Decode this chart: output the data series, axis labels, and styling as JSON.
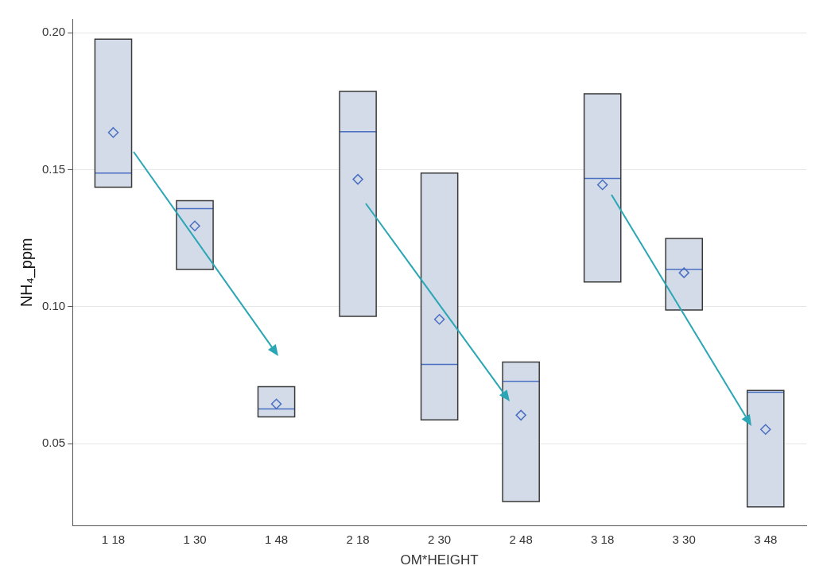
{
  "chart_data": {
    "type": "box",
    "xlabel": "OM*HEIGHT",
    "ylabel": "NH₄_ppm",
    "categories": [
      "1 18",
      "1 30",
      "1 48",
      "2 18",
      "2 30",
      "2 48",
      "3 18",
      "3 30",
      "3 48"
    ],
    "boxes": [
      {
        "low": 0.1436,
        "q1": 0.1436,
        "median": 0.1488,
        "q3": 0.1977,
        "high": 0.1977,
        "mean": 0.1636
      },
      {
        "low": 0.1136,
        "q1": 0.1136,
        "median": 0.1358,
        "q3": 0.1387,
        "high": 0.1387,
        "mean": 0.1295
      },
      {
        "low": 0.0598,
        "q1": 0.0598,
        "median": 0.0627,
        "q3": 0.0708,
        "high": 0.0708,
        "mean": 0.0645
      },
      {
        "low": 0.0965,
        "q1": 0.0965,
        "median": 0.1639,
        "q3": 0.1786,
        "high": 0.1786,
        "mean": 0.1465
      },
      {
        "low": 0.0587,
        "q1": 0.0587,
        "median": 0.0789,
        "q3": 0.1488,
        "high": 0.1488,
        "mean": 0.0954
      },
      {
        "low": 0.0289,
        "q1": 0.0289,
        "median": 0.0728,
        "q3": 0.0798,
        "high": 0.0798,
        "mean": 0.0604
      },
      {
        "low": 0.109,
        "q1": 0.109,
        "median": 0.1468,
        "q3": 0.1777,
        "high": 0.1777,
        "mean": 0.1445
      },
      {
        "low": 0.0988,
        "q1": 0.0988,
        "median": 0.1136,
        "q3": 0.1249,
        "high": 0.1249,
        "mean": 0.1124
      },
      {
        "low": 0.0269,
        "q1": 0.0269,
        "median": 0.0688,
        "q3": 0.0694,
        "high": 0.0694,
        "mean": 0.0552
      }
    ],
    "color": "#d3dbe9",
    "ylim": [
      0.02,
      0.205
    ],
    "yticks": [
      {
        "value": 0.05,
        "label": "0.05"
      },
      {
        "value": 0.1,
        "label": "0.10"
      },
      {
        "value": 0.15,
        "label": "0.15"
      },
      {
        "value": 0.2,
        "label": "0.20"
      }
    ],
    "grid": "y",
    "marker": "diamond",
    "legend": false
  }
}
